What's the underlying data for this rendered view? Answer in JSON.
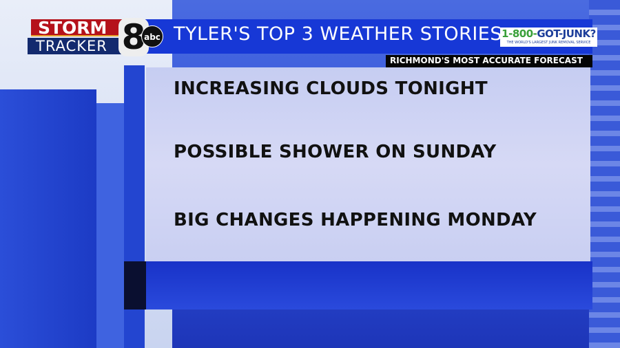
{
  "branding": {
    "storm": "STORM",
    "tracker": "TRACKER",
    "channel_number": "8",
    "network": "abc"
  },
  "header": {
    "title": "TYLER'S TOP 3 WEATHER STORIES",
    "tagline": "RICHMOND'S MOST ACCURATE FORECAST"
  },
  "sponsor": {
    "name_prefix": "1-800-",
    "name_main": "GOT-JUNK?",
    "slogan": "THE WORLD'S LARGEST JUNK REMOVAL SERVICE"
  },
  "stories": [
    "INCREASING CLOUDS TONIGHT",
    "POSSIBLE SHOWER ON SUNDAY",
    "BIG CHANGES HAPPENING MONDAY"
  ],
  "colors": {
    "header_blue": "#1738d6",
    "storm_red": "#b5121b",
    "tracker_navy": "#132a6e",
    "panel": "#ccd2f3"
  }
}
